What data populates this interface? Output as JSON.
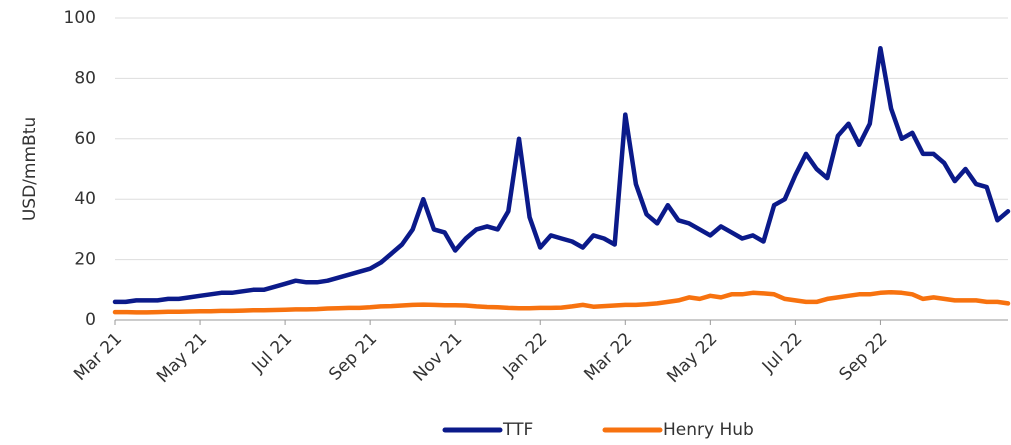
{
  "chart_data": {
    "type": "line",
    "y_label": "USD/mmBtu",
    "categories": [
      "Mar 21",
      null,
      null,
      null,
      null,
      null,
      null,
      null,
      "May 21",
      null,
      null,
      null,
      null,
      null,
      null,
      null,
      "Jul 21",
      null,
      null,
      null,
      null,
      null,
      null,
      null,
      "Sep 21",
      null,
      null,
      null,
      null,
      null,
      null,
      null,
      "Nov 21",
      null,
      null,
      null,
      null,
      null,
      null,
      null,
      "Jan 22",
      null,
      null,
      null,
      null,
      null,
      null,
      null,
      "Mar 22",
      null,
      null,
      null,
      null,
      null,
      null,
      null,
      "May 22",
      null,
      null,
      null,
      null,
      null,
      null,
      null,
      "Jul 22",
      null,
      null,
      null,
      null,
      null,
      null,
      null,
      "Sep 22",
      null,
      null,
      null,
      null,
      null,
      null,
      null,
      null,
      null,
      null,
      null,
      null
    ],
    "series": [
      {
        "name": "TTF",
        "color": "#0b1a8a",
        "values": [
          6,
          6,
          6.5,
          6.5,
          6.5,
          7,
          7,
          7.5,
          8,
          8.5,
          9,
          9,
          9.5,
          10,
          10,
          11,
          12,
          13,
          12.5,
          12.5,
          13,
          14,
          15,
          16,
          17,
          19,
          22,
          25,
          30,
          40,
          30,
          29,
          23,
          27,
          30,
          31,
          30,
          36,
          60,
          34,
          24,
          28,
          27,
          26,
          24,
          28,
          27,
          25,
          68,
          45,
          35,
          32,
          38,
          33,
          32,
          30,
          28,
          31,
          29,
          27,
          28,
          26,
          38,
          40,
          48,
          55,
          50,
          47,
          61,
          65,
          58,
          65,
          90,
          70,
          60,
          62,
          55,
          55,
          52,
          46,
          50,
          45,
          44,
          33,
          36
        ]
      },
      {
        "name": "Henry Hub",
        "color": "#f7720f",
        "values": [
          2.6,
          2.6,
          2.5,
          2.5,
          2.6,
          2.7,
          2.7,
          2.8,
          2.9,
          2.9,
          3,
          3,
          3.1,
          3.2,
          3.2,
          3.3,
          3.4,
          3.5,
          3.5,
          3.6,
          3.8,
          3.9,
          4,
          4,
          4.2,
          4.5,
          4.6,
          4.8,
          5,
          5.1,
          5,
          4.9,
          4.9,
          4.8,
          4.5,
          4.3,
          4.2,
          4,
          3.9,
          3.9,
          4,
          4,
          4.1,
          4.5,
          5,
          4.4,
          4.6,
          4.8,
          5,
          5,
          5.2,
          5.5,
          6,
          6.5,
          7.5,
          7,
          8,
          7.5,
          8.5,
          8.5,
          9,
          8.8,
          8.5,
          7,
          6.5,
          6,
          6,
          7,
          7.5,
          8,
          8.5,
          8.5,
          9,
          9.2,
          9,
          8.5,
          7,
          7.5,
          7,
          6.5,
          6.5,
          6.5,
          6,
          6,
          5.5
        ]
      }
    ],
    "ylim": [
      0,
      100
    ],
    "yticks": [
      0,
      20,
      40,
      60,
      80,
      100
    ],
    "grid": true,
    "legend": "bottom"
  }
}
